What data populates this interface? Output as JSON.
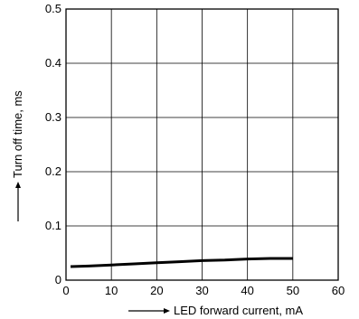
{
  "chart_data": {
    "type": "line",
    "xlabel": "LED forward current, mA",
    "ylabel": "Turn off time, ms",
    "xlim": [
      0,
      60
    ],
    "ylim": [
      0,
      0.5
    ],
    "x_ticks": [
      0,
      10,
      20,
      30,
      40,
      50,
      60
    ],
    "y_ticks": [
      0,
      0.1,
      0.2,
      0.3,
      0.4,
      0.5
    ],
    "x_tick_labels": [
      "0",
      "10",
      "20",
      "30",
      "40",
      "50",
      "60"
    ],
    "y_tick_labels": [
      "0",
      "0.1",
      "0.2",
      "0.3",
      "0.4",
      "0.5"
    ],
    "grid": true,
    "series": [
      {
        "x": [
          1,
          5,
          10,
          15,
          20,
          25,
          30,
          35,
          40,
          45,
          50
        ],
        "y": [
          0.025,
          0.026,
          0.028,
          0.03,
          0.032,
          0.034,
          0.036,
          0.037,
          0.039,
          0.04,
          0.04
        ]
      }
    ],
    "line_color": "#000000"
  }
}
